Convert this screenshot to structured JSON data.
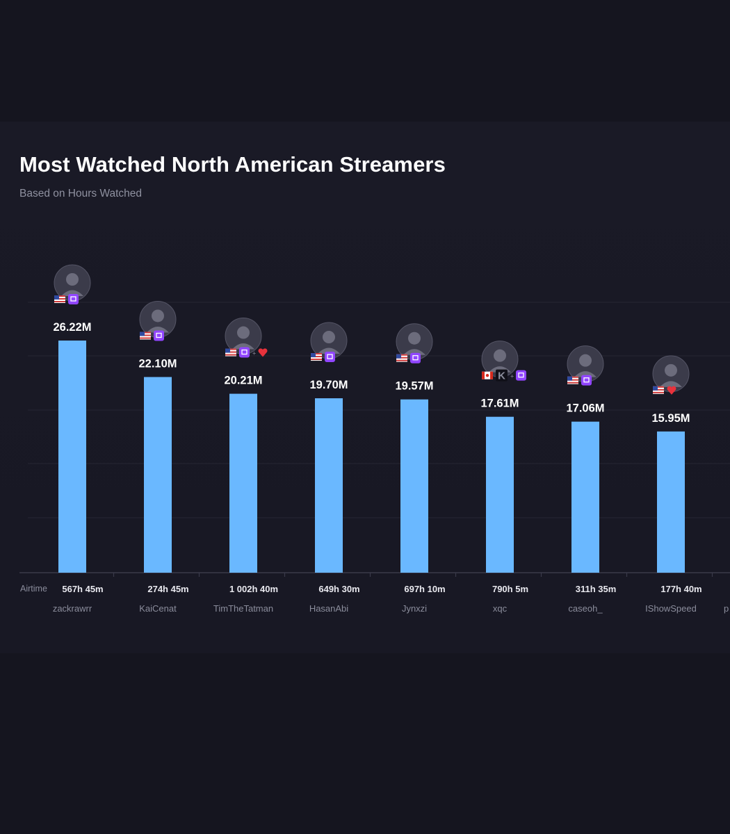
{
  "header": {
    "title": "Most Watched North American Streamers",
    "subtitle": "Based on Hours Watched"
  },
  "colors": {
    "background": "#15151f",
    "panel": "#1a1a26",
    "bar": "#6ab8ff",
    "gridline": "#262634",
    "twitch": "#9146ff",
    "kick": "#53fc18",
    "heart": "#e8323c"
  },
  "chart_data": {
    "type": "bar",
    "title": "Most Watched North American Streamers",
    "subtitle": "Based on Hours Watched",
    "airtime_label": "Airtime",
    "ylim": [
      0,
      28
    ],
    "grid": true,
    "categories": [
      "zackrawrr",
      "KaiCenat",
      "TimTheTatman",
      "HasanAbi",
      "Jynxzi",
      "xqc",
      "caseoh_",
      "IShowSpeed",
      "p"
    ],
    "values": [
      26.22,
      22.1,
      20.21,
      19.7,
      19.57,
      17.61,
      17.06,
      15.95,
      null
    ],
    "value_labels": [
      "26.22M",
      "22.10M",
      "20.21M",
      "19.70M",
      "19.57M",
      "17.61M",
      "17.06M",
      "15.95M",
      ""
    ],
    "airtime": [
      "567h 45m",
      "274h 45m",
      "1 002h 40m",
      "649h 30m",
      "697h 10m",
      "790h 5m",
      "311h 35m",
      "177h 40m",
      ""
    ],
    "countries": [
      "us",
      "us",
      "us",
      "us",
      "us",
      "ca",
      "us",
      "us",
      ""
    ],
    "platforms": [
      [
        "twitch"
      ],
      [
        "twitch"
      ],
      [
        "twitch",
        "heart"
      ],
      [
        "twitch"
      ],
      [
        "twitch"
      ],
      [
        "kick",
        "twitch"
      ],
      [
        "twitch"
      ],
      [
        "heart"
      ],
      []
    ]
  }
}
